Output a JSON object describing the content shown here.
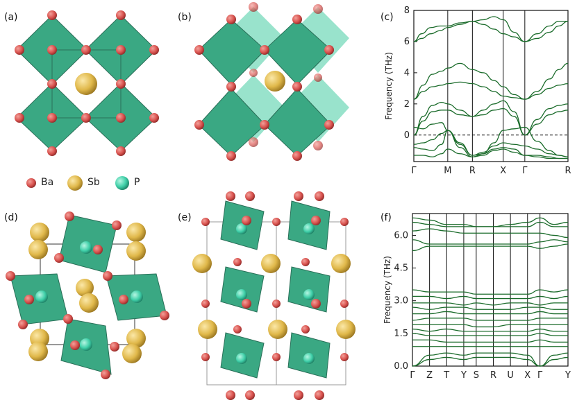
{
  "panel_labels": [
    "(a)",
    "(b)",
    "(c)",
    "(d)",
    "(e)",
    "(f)"
  ],
  "legend": [
    {
      "label": "Ba",
      "color": "#d9534f"
    },
    {
      "label": "Sb",
      "color": "#e0b84a"
    },
    {
      "label": "P",
      "color": "#3fcfa8"
    }
  ],
  "colors": {
    "ba": "#d9534f",
    "sb": "#e0b84a",
    "p": "#3fcfa8",
    "octahedron": "#3aa883",
    "octahedron_dark": "#2d8a6a",
    "band": "#1a6b2a"
  },
  "chart_data": [
    {
      "id": "c",
      "type": "line",
      "ylabel": "Frequency (THz)",
      "ylim": [
        -1.7,
        8
      ],
      "yticks": [
        0,
        2,
        4,
        6,
        8
      ],
      "ytick_labels": [
        "0",
        "2",
        "4",
        "6",
        "8"
      ],
      "kpoints": [
        "Γ",
        "M",
        "R",
        "X",
        "Γ",
        "R"
      ],
      "kpoint_positions": [
        0,
        0.22,
        0.38,
        0.58,
        0.72,
        1.0
      ],
      "zero_line": true,
      "series": [
        {
          "x": [
            0,
            0.05,
            0.11,
            0.17,
            0.22,
            0.3,
            0.38,
            0.45,
            0.52,
            0.58,
            0.65,
            0.72,
            0.8,
            0.88,
            0.94,
            1.0
          ],
          "values": [
            6.0,
            6.5,
            6.9,
            7.0,
            7.0,
            7.2,
            7.3,
            7.4,
            7.6,
            7.4,
            6.6,
            6.0,
            6.5,
            7.0,
            7.3,
            7.3
          ]
        },
        {
          "x": [
            0,
            0.05,
            0.11,
            0.17,
            0.22,
            0.3,
            0.38,
            0.45,
            0.52,
            0.58,
            0.65,
            0.72,
            0.8,
            0.88,
            0.94,
            1.0
          ],
          "values": [
            6.0,
            6.2,
            6.5,
            6.7,
            6.9,
            7.1,
            7.3,
            7.1,
            6.8,
            6.5,
            6.3,
            6.0,
            6.2,
            6.6,
            7.0,
            7.3
          ]
        },
        {
          "x": [
            0,
            0.06,
            0.12,
            0.18,
            0.22,
            0.3,
            0.38,
            0.45,
            0.52,
            0.58,
            0.65,
            0.72,
            0.8,
            0.88,
            0.94,
            1.0
          ],
          "values": [
            2.3,
            3.2,
            3.9,
            4.1,
            4.3,
            4.6,
            4.2,
            4.0,
            3.5,
            3.1,
            2.6,
            2.3,
            2.8,
            3.6,
            4.2,
            4.6
          ]
        },
        {
          "x": [
            0,
            0.06,
            0.12,
            0.18,
            0.22,
            0.3,
            0.38,
            0.45,
            0.52,
            0.58,
            0.65,
            0.72,
            0.8,
            0.88,
            0.94,
            1.0
          ],
          "values": [
            2.3,
            2.8,
            3.1,
            3.2,
            3.3,
            3.4,
            3.3,
            3.1,
            2.8,
            2.5,
            2.4,
            2.3,
            2.6,
            3.0,
            3.2,
            3.3
          ]
        },
        {
          "x": [
            0,
            0.06,
            0.12,
            0.18,
            0.22,
            0.3,
            0.38,
            0.45,
            0.52,
            0.58,
            0.65,
            0.72,
            0.8,
            0.88,
            0.94,
            1.0
          ],
          "values": [
            0.0,
            1.2,
            1.9,
            2.1,
            2.0,
            1.6,
            1.2,
            1.6,
            2.0,
            2.2,
            1.5,
            0.0,
            1.0,
            1.7,
            1.9,
            2.0
          ]
        },
        {
          "x": [
            0,
            0.06,
            0.12,
            0.18,
            0.22,
            0.3,
            0.38,
            0.45,
            0.52,
            0.58,
            0.65,
            0.72,
            0.8,
            0.88,
            0.94,
            1.0
          ],
          "values": [
            0.0,
            0.9,
            1.5,
            1.6,
            1.6,
            1.3,
            1.2,
            1.3,
            1.6,
            1.7,
            1.2,
            0.0,
            0.7,
            1.3,
            1.5,
            1.6
          ]
        },
        {
          "x": [
            0,
            0.06,
            0.12,
            0.18,
            0.22,
            0.3,
            0.38,
            0.45,
            0.52,
            0.58,
            0.65,
            0.72,
            0.8,
            0.88,
            0.94,
            1.0
          ],
          "values": [
            0.5,
            0.4,
            0.7,
            0.8,
            0.3,
            -0.6,
            -1.3,
            -1.2,
            -0.5,
            0.3,
            0.4,
            0.5,
            -0.4,
            -1.0,
            -1.3,
            -1.4
          ]
        },
        {
          "x": [
            0,
            0.06,
            0.12,
            0.18,
            0.22,
            0.3,
            0.38,
            0.45,
            0.52,
            0.58,
            0.65,
            0.72,
            0.8,
            0.88,
            0.94,
            1.0
          ],
          "values": [
            -0.6,
            -0.5,
            -0.3,
            0.1,
            0.3,
            -0.5,
            -1.3,
            -1.1,
            -0.7,
            -0.5,
            -0.6,
            -0.7,
            -0.9,
            -1.2,
            -1.3,
            -1.4
          ]
        },
        {
          "x": [
            0,
            0.06,
            0.12,
            0.18,
            0.22,
            0.3,
            0.38,
            0.45,
            0.52,
            0.58,
            0.65,
            0.72,
            0.8,
            0.88,
            0.94,
            1.0
          ],
          "values": [
            -0.8,
            -0.9,
            -1.0,
            -0.6,
            0.3,
            -0.8,
            -1.4,
            -1.2,
            -0.9,
            -0.8,
            -0.9,
            -1.3,
            -1.3,
            -1.4,
            -1.5,
            -1.5
          ]
        },
        {
          "x": [
            0,
            0.06,
            0.12,
            0.18,
            0.22,
            0.3,
            0.38,
            0.45,
            0.52,
            0.58,
            0.65,
            0.72,
            0.8,
            0.88,
            0.94,
            1.0
          ],
          "values": [
            -1.3,
            -1.3,
            -1.4,
            -1.2,
            -0.9,
            -1.2,
            -1.4,
            -1.3,
            -1.0,
            -0.9,
            -1.1,
            -1.3,
            -1.4,
            -1.5,
            -1.5,
            -1.5
          ]
        }
      ]
    },
    {
      "id": "f",
      "type": "line",
      "ylabel": "Frequency (THz)",
      "ylim": [
        0,
        7.0
      ],
      "yticks": [
        0.0,
        1.5,
        3.0,
        4.5,
        6.0
      ],
      "ytick_labels": [
        "0.0",
        "1.5",
        "3.0",
        "4.5",
        "6.0"
      ],
      "kpoints": [
        "Γ",
        "Z",
        "T",
        "Y",
        "S",
        "R",
        "U",
        "X",
        "Γ",
        "Y"
      ],
      "kpoint_positions": [
        0,
        0.11,
        0.22,
        0.33,
        0.41,
        0.52,
        0.63,
        0.74,
        0.82,
        1.0
      ],
      "series": [
        {
          "x": [
            0,
            0.11,
            0.22,
            0.33,
            0.41,
            0.52,
            0.63,
            0.74,
            0.82,
            0.91,
            1.0
          ],
          "values": [
            6.8,
            6.7,
            6.5,
            6.5,
            6.4,
            6.4,
            6.5,
            6.6,
            6.8,
            6.5,
            6.6
          ]
        },
        {
          "x": [
            0,
            0.11,
            0.22,
            0.33,
            0.41,
            0.52,
            0.63,
            0.74,
            0.82,
            0.91,
            1.0
          ],
          "values": [
            6.6,
            6.5,
            6.4,
            6.4,
            6.4,
            6.4,
            6.4,
            6.4,
            6.6,
            6.4,
            6.4
          ]
        },
        {
          "x": [
            0,
            0.11,
            0.22,
            0.33,
            0.41,
            0.52,
            0.63,
            0.74,
            0.82,
            0.91,
            1.0
          ],
          "values": [
            6.2,
            6.3,
            6.2,
            6.1,
            6.1,
            6.1,
            6.1,
            6.1,
            6.1,
            6.0,
            5.9
          ]
        },
        {
          "x": [
            0,
            0.11,
            0.22,
            0.33,
            0.41,
            0.52,
            0.63,
            0.74,
            0.82,
            0.91,
            1.0
          ],
          "values": [
            5.8,
            5.6,
            5.6,
            5.6,
            5.6,
            5.6,
            5.6,
            5.6,
            5.7,
            5.8,
            5.7
          ]
        },
        {
          "x": [
            0,
            0.11,
            0.22,
            0.33,
            0.41,
            0.52,
            0.63,
            0.74,
            0.82,
            0.91,
            1.0
          ],
          "values": [
            5.3,
            5.5,
            5.5,
            5.5,
            5.5,
            5.5,
            5.5,
            5.5,
            5.4,
            5.5,
            5.6
          ]
        },
        {
          "x": [
            0,
            0.11,
            0.22,
            0.33,
            0.41,
            0.52,
            0.63,
            0.74,
            0.82,
            0.91,
            1.0
          ],
          "values": [
            3.5,
            3.4,
            3.4,
            3.4,
            3.3,
            3.3,
            3.3,
            3.3,
            3.5,
            3.4,
            3.5
          ]
        },
        {
          "x": [
            0,
            0.11,
            0.22,
            0.33,
            0.41,
            0.52,
            0.63,
            0.74,
            0.82,
            0.91,
            1.0
          ],
          "values": [
            3.2,
            3.2,
            3.1,
            3.2,
            3.1,
            3.1,
            3.1,
            3.1,
            3.2,
            3.1,
            3.2
          ]
        },
        {
          "x": [
            0,
            0.11,
            0.22,
            0.33,
            0.41,
            0.52,
            0.63,
            0.74,
            0.82,
            0.91,
            1.0
          ],
          "values": [
            2.9,
            2.9,
            2.9,
            2.8,
            2.9,
            2.8,
            2.9,
            2.9,
            2.8,
            2.9,
            2.9
          ]
        },
        {
          "x": [
            0,
            0.11,
            0.22,
            0.33,
            0.41,
            0.52,
            0.63,
            0.74,
            0.82,
            0.91,
            1.0
          ],
          "values": [
            2.7,
            2.6,
            2.7,
            2.7,
            2.6,
            2.6,
            2.6,
            2.7,
            2.7,
            2.6,
            2.6
          ]
        },
        {
          "x": [
            0,
            0.11,
            0.22,
            0.33,
            0.41,
            0.52,
            0.63,
            0.74,
            0.82,
            0.91,
            1.0
          ],
          "values": [
            2.4,
            2.4,
            2.5,
            2.4,
            2.4,
            2.4,
            2.4,
            2.4,
            2.5,
            2.4,
            2.4
          ]
        },
        {
          "x": [
            0,
            0.11,
            0.22,
            0.33,
            0.41,
            0.52,
            0.63,
            0.74,
            0.82,
            0.91,
            1.0
          ],
          "values": [
            2.1,
            2.2,
            2.2,
            2.2,
            2.1,
            2.1,
            2.1,
            2.1,
            2.2,
            2.2,
            2.2
          ]
        },
        {
          "x": [
            0,
            0.11,
            0.22,
            0.33,
            0.41,
            0.52,
            0.63,
            0.74,
            0.82,
            0.91,
            1.0
          ],
          "values": [
            1.9,
            1.9,
            1.9,
            1.9,
            1.8,
            1.8,
            1.9,
            1.9,
            1.9,
            1.9,
            1.9
          ]
        },
        {
          "x": [
            0,
            0.11,
            0.22,
            0.33,
            0.41,
            0.52,
            0.63,
            0.74,
            0.82,
            0.91,
            1.0
          ],
          "values": [
            1.7,
            1.6,
            1.7,
            1.6,
            1.6,
            1.6,
            1.6,
            1.6,
            1.7,
            1.6,
            1.6
          ]
        },
        {
          "x": [
            0,
            0.11,
            0.22,
            0.33,
            0.41,
            0.52,
            0.63,
            0.74,
            0.82,
            0.91,
            1.0
          ],
          "values": [
            1.5,
            1.4,
            1.4,
            1.4,
            1.4,
            1.4,
            1.4,
            1.4,
            1.5,
            1.4,
            1.4
          ]
        },
        {
          "x": [
            0,
            0.11,
            0.22,
            0.33,
            0.41,
            0.52,
            0.63,
            0.74,
            0.82,
            0.91,
            1.0
          ],
          "values": [
            1.2,
            1.2,
            1.1,
            1.1,
            1.1,
            1.1,
            1.1,
            1.1,
            1.2,
            1.1,
            1.1
          ]
        },
        {
          "x": [
            0,
            0.11,
            0.22,
            0.33,
            0.41,
            0.52,
            0.63,
            0.74,
            0.82,
            0.91,
            1.0
          ],
          "values": [
            0.9,
            0.9,
            0.9,
            0.9,
            0.9,
            0.9,
            0.9,
            0.9,
            0.9,
            0.9,
            0.9
          ]
        },
        {
          "x": [
            0,
            0.11,
            0.22,
            0.33,
            0.41,
            0.52,
            0.63,
            0.74,
            0.82,
            0.91,
            1.0
          ],
          "values": [
            0.0,
            0.5,
            0.6,
            0.5,
            0.6,
            0.6,
            0.6,
            0.5,
            0.0,
            0.5,
            0.6
          ]
        },
        {
          "x": [
            0,
            0.11,
            0.22,
            0.33,
            0.41,
            0.52,
            0.63,
            0.74,
            0.82,
            0.91,
            1.0
          ],
          "values": [
            0.0,
            0.3,
            0.4,
            0.3,
            0.4,
            0.4,
            0.4,
            0.3,
            0.0,
            0.3,
            0.4
          ]
        }
      ]
    }
  ]
}
